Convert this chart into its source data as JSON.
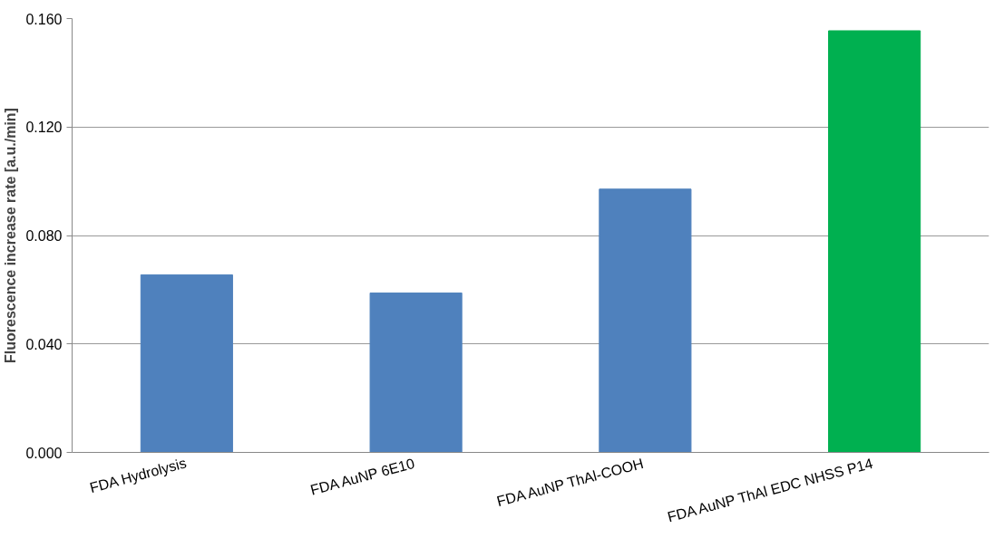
{
  "chart_data": {
    "type": "bar",
    "ylabel": "Fluorescence increase rate [a.u./min]",
    "categories": [
      "FDA Hydrolysis",
      "FDA AuNP 6E10",
      "FDA AuNP ThAl-COOH",
      "FDA AuNP ThAl EDC NHSS P14"
    ],
    "values": [
      0.0655,
      0.0588,
      0.0971,
      0.1555
    ],
    "colors": [
      "#4f81bd",
      "#4f81bd",
      "#4f81bd",
      "#00b050"
    ],
    "ylim": [
      0,
      0.16
    ],
    "yticks": [
      {
        "value": 0,
        "label": "0.000"
      },
      {
        "value": 0.04,
        "label": "0.040"
      },
      {
        "value": 0.08,
        "label": "0.080"
      },
      {
        "value": 0.12,
        "label": "0.120"
      },
      {
        "value": 0.16,
        "label": "0.160"
      }
    ],
    "grid": "y"
  }
}
